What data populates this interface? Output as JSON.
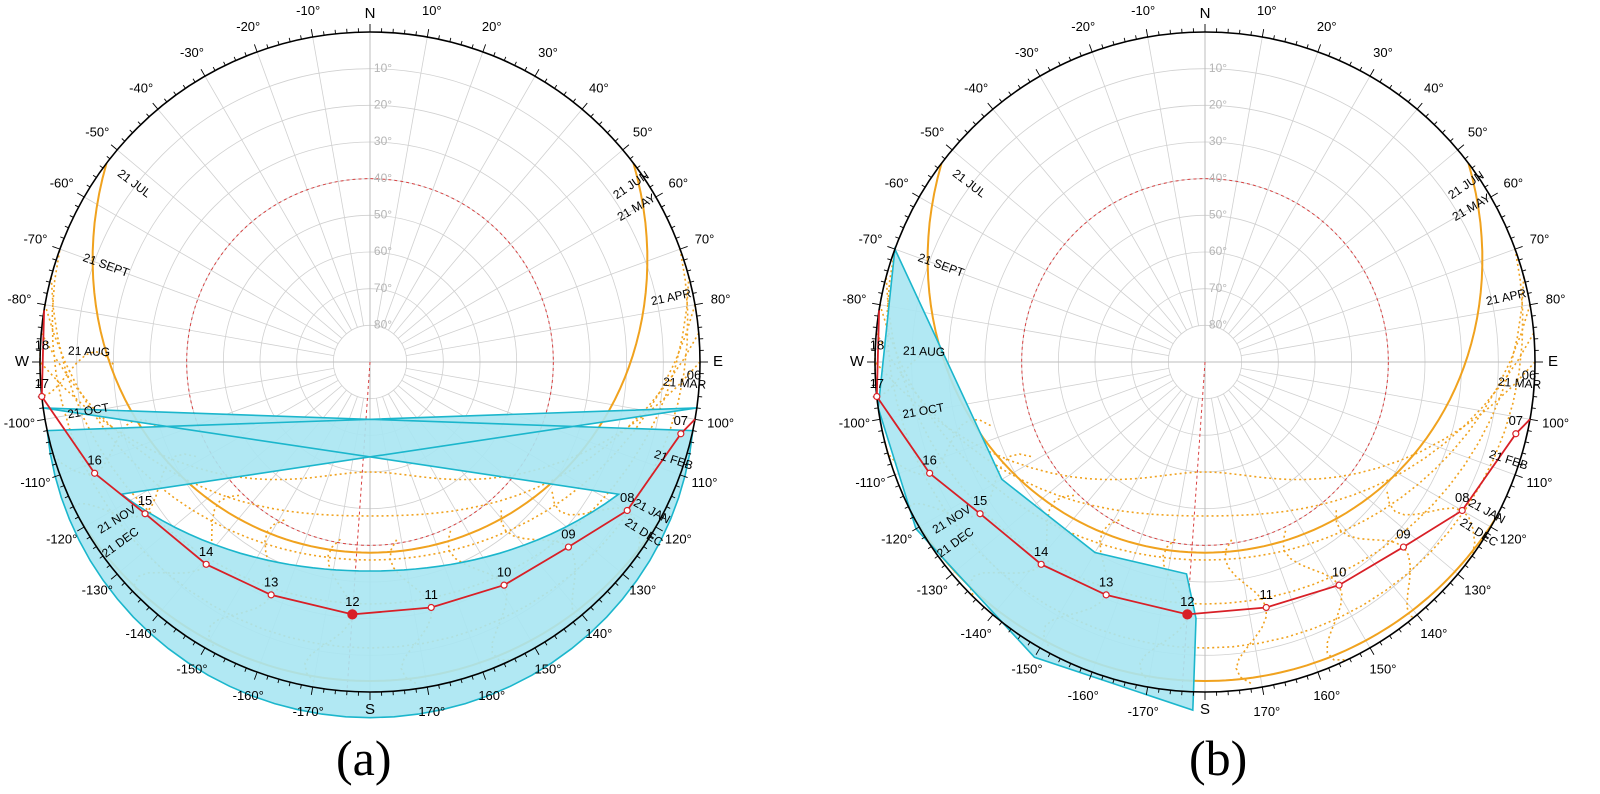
{
  "figure": {
    "panels": [
      {
        "id": "a",
        "label": "(a)",
        "shading": "symmetric band around solar noon (approx. 07:00–17:00)",
        "hour_markers": [
          {
            "hour": "17",
            "az": -96,
            "alt": 0
          },
          {
            "hour": "16",
            "az": -112,
            "alt": 9
          },
          {
            "hour": "15",
            "az": -124,
            "alt": 16
          },
          {
            "hour": "14",
            "az": -141,
            "alt": 19
          },
          {
            "hour": "13",
            "az": -157,
            "alt": 21
          },
          {
            "hour": "12",
            "az": -176,
            "alt": 21
          },
          {
            "hour": "11",
            "az": 166,
            "alt": 21
          },
          {
            "hour": "10",
            "az": 149,
            "alt": 19
          },
          {
            "hour": "09",
            "az": 133,
            "alt": 16
          },
          {
            "hour": "08",
            "az": 120,
            "alt": 9
          },
          {
            "hour": "07",
            "az": 103,
            "alt": 3
          }
        ]
      },
      {
        "id": "b",
        "label": "(b)",
        "shading": "afternoon sector (approx. 12:30–17:00)",
        "hour_markers": [
          {
            "hour": "17",
            "az": -96,
            "alt": 0
          },
          {
            "hour": "16",
            "az": -112,
            "alt": 9
          },
          {
            "hour": "15",
            "az": -124,
            "alt": 16
          },
          {
            "hour": "14",
            "az": -141,
            "alt": 19
          },
          {
            "hour": "13",
            "az": -157,
            "alt": 21
          },
          {
            "hour": "12",
            "az": -176,
            "alt": 21
          },
          {
            "hour": "11",
            "az": 166,
            "alt": 21
          },
          {
            "hour": "10",
            "az": 149,
            "alt": 19
          },
          {
            "hour": "09",
            "az": 133,
            "alt": 16
          },
          {
            "hour": "08",
            "az": 120,
            "alt": 9
          },
          {
            "hour": "07",
            "az": 103,
            "alt": 3
          }
        ]
      }
    ],
    "cardinals": {
      "north": "N",
      "south": "S",
      "east": "E",
      "west": "W"
    },
    "extra_hours": {
      "west": "18",
      "east": "06"
    },
    "azimuth_labels": [
      "10°",
      "20°",
      "30°",
      "40°",
      "50°",
      "60°",
      "70°",
      "80°",
      "100°",
      "110°",
      "120°",
      "130°",
      "140°",
      "150°",
      "160°",
      "170°",
      "-10°",
      "-20°",
      "-30°",
      "-40°",
      "-50°",
      "-60°",
      "-70°",
      "-80°",
      "-100°",
      "-110°",
      "-120°",
      "-130°",
      "-140°",
      "-150°",
      "-160°",
      "-170°"
    ],
    "altitude_labels": [
      "10°",
      "20°",
      "30°",
      "40°",
      "50°",
      "60°",
      "70°",
      "80°"
    ],
    "date_labels_left": [
      "21 JUL",
      "21 SEPT",
      "21 AUG",
      "21 OCT",
      "21 NOV",
      "21 DEC"
    ],
    "date_labels_right": [
      "21 JUN",
      "21 MAY",
      "21 APR",
      "21 MAR",
      "21 FEB",
      "21 JAN",
      "21 DEC"
    ],
    "colors": {
      "sun_path": "#d81f26",
      "date_curves": "#f0a21e",
      "shade_fill": "#a8e6f2",
      "shade_edge": "#1bb6cc",
      "shade_top_edge": "#1b7a3a",
      "grid": "#d0d0d0",
      "dashed_circle": "#d84040",
      "grid_text": "#b5b5b5"
    }
  }
}
